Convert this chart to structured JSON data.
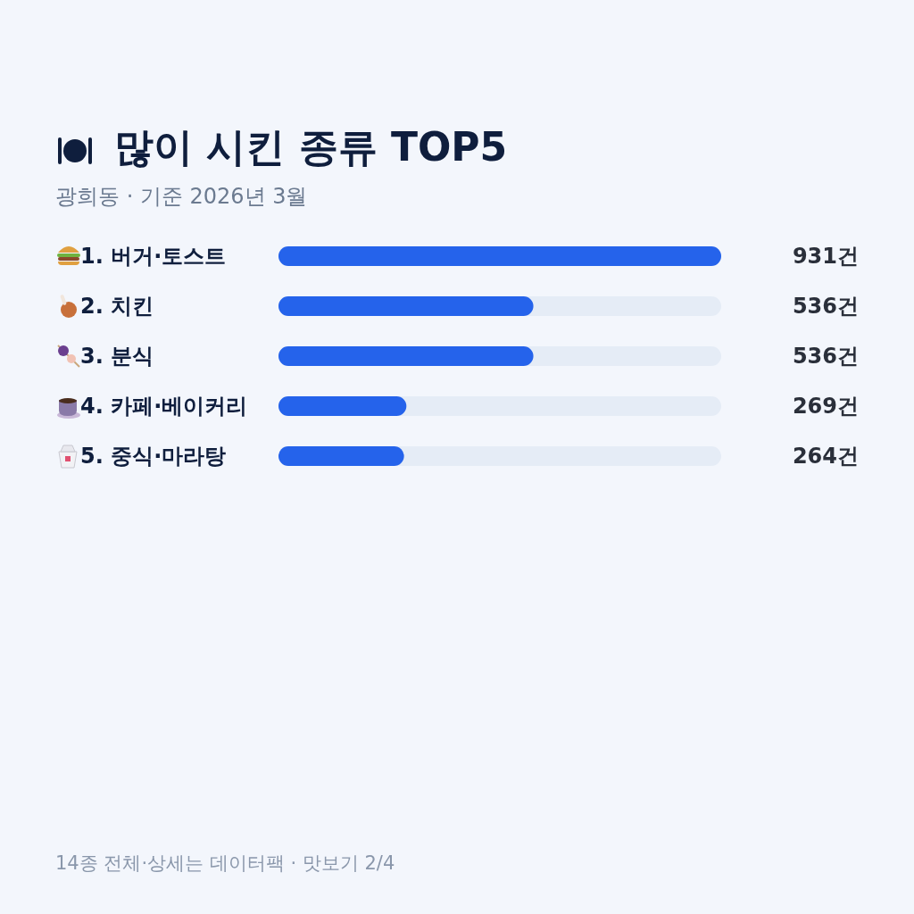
{
  "chart_data": {
    "type": "bar",
    "orientation": "horizontal",
    "title": "많이 시킨 종류 TOP5",
    "subtitle": "광희동 · 기준 2026년 3월",
    "categories": [
      "1. 버거·토스트",
      "2. 치킨",
      "3. 분식",
      "4. 카페·베이커리",
      "5. 중식·마라탕"
    ],
    "values": [
      931,
      536,
      536,
      269,
      264
    ],
    "value_labels": [
      "931건",
      "536건",
      "536건",
      "269건",
      "264건"
    ],
    "color": "#2563eb",
    "annotations": [
      "14종 전체·상세는 데이터팩 · 맛보기 2/4"
    ]
  }
}
